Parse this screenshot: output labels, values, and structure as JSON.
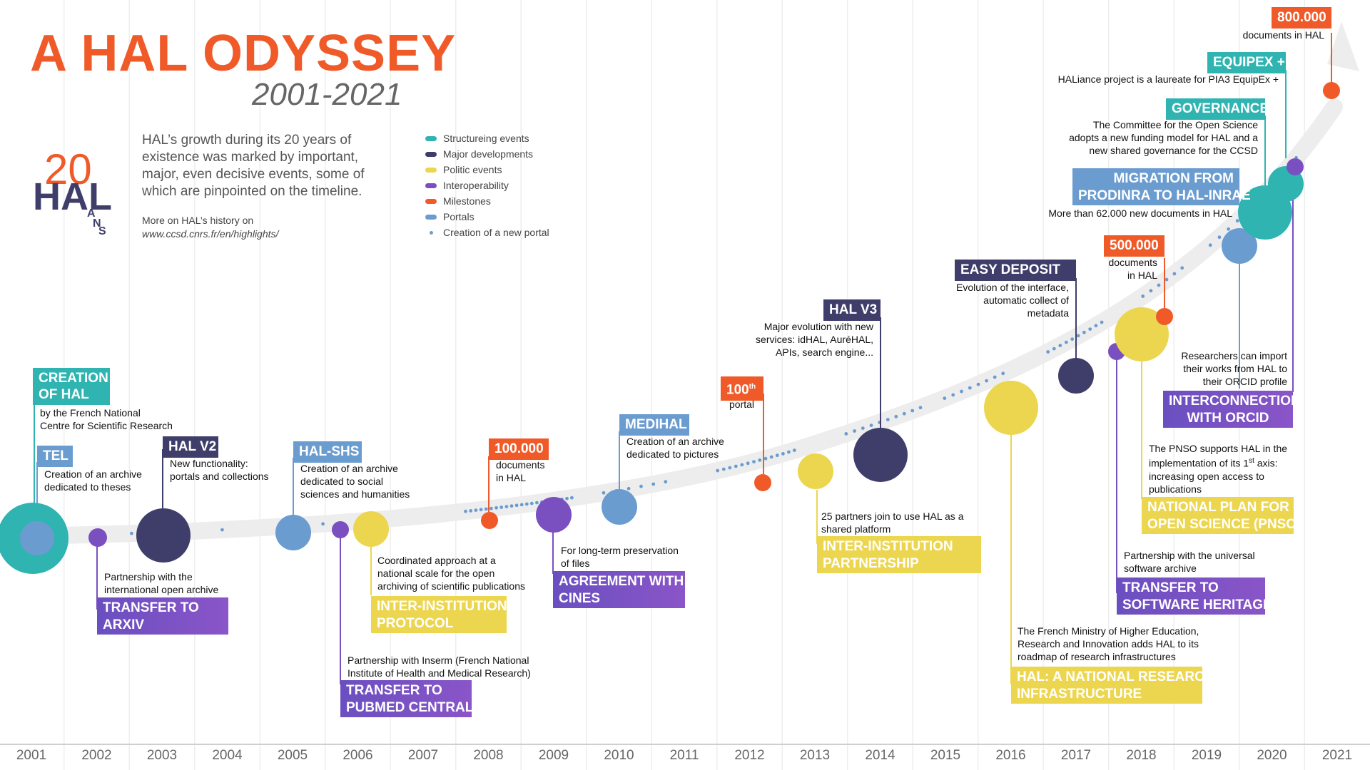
{
  "header": {
    "title": "A HAL ODYSSEY",
    "subtitle": "2001-2021",
    "intro": "HAL’s growth during its 20 years of existence was marked by important, major, even decisive events, some of which are pinpointed on the timeline.",
    "more_line1": "More on HAL’s history on",
    "more_url": "www.ccsd.cnrs.fr/en/highlights/"
  },
  "logo": {
    "digit": "20",
    "word": "HAL",
    "letters": [
      "A",
      "N",
      "S"
    ],
    "icon": "hal-20-ans-logo"
  },
  "colors": {
    "structuring": "#2fb4b1",
    "major": "#3f3e6b",
    "politic": "#ecd64f",
    "interop": "#7a4fc0",
    "milestone": "#ef5a28",
    "portal": "#6b9cd0",
    "orange_title": "#ef5a28"
  },
  "legend": [
    {
      "label": "Structureing events",
      "color": "#2fb4b1"
    },
    {
      "label": "Major developments",
      "color": "#3f3e6b"
    },
    {
      "label": "Politic events",
      "color": "#ecd64f"
    },
    {
      "label": "Interoperability",
      "color": "#7a4fc0"
    },
    {
      "label": "Milestones",
      "color": "#ef5a28"
    },
    {
      "label": "Portals",
      "color": "#6b9cd0"
    },
    {
      "label": "Creation of a new portal",
      "color": "#6b9cd0",
      "dot": true
    }
  ],
  "years": [
    "2001",
    "2002",
    "2003",
    "2004",
    "2005",
    "2006",
    "2007",
    "2008",
    "2009",
    "2010",
    "2011",
    "2012",
    "2013",
    "2014",
    "2015",
    "2016",
    "2017",
    "2018",
    "2019",
    "2020",
    "2021"
  ],
  "events": {
    "creation": {
      "title": "CREATION OF HAL",
      "desc": [
        "by the French National",
        "Centre for Scientific Research"
      ]
    },
    "tel": {
      "title": "TEL",
      "desc": [
        "Creation of an archive",
        "dedicated to theses"
      ]
    },
    "arxiv": {
      "title": [
        "TRANSFER TO",
        "ARXIV"
      ],
      "desc": [
        "Partnership with the",
        "international open archive"
      ]
    },
    "halv2": {
      "title": "HAL V2",
      "desc": [
        "New functionality:",
        "portals and collections"
      ]
    },
    "halshs": {
      "title": "HAL-SHS",
      "desc": [
        "Creation of an archive",
        "dedicated to social",
        "sciences and humanities"
      ]
    },
    "pubmed": {
      "title": [
        "TRANSFER TO",
        "PUBMED CENTRAL"
      ],
      "desc": [
        "Partnership with Inserm (French National",
        "Institute of Health and Medical Research)"
      ]
    },
    "protocol": {
      "title": [
        "INTER-INSTITUTION",
        "PROTOCOL"
      ],
      "desc": [
        "Coordinated approach at a",
        "national scale for the open",
        "archiving of scientific publications"
      ]
    },
    "m100k": {
      "title": "100.000",
      "desc": [
        "documents",
        "in HAL"
      ]
    },
    "cines": {
      "title": [
        "AGREEMENT WITH",
        "CINES"
      ],
      "desc": [
        "For long-term preservation",
        "of files"
      ]
    },
    "medihal": {
      "title": "MEDIHAL",
      "desc": [
        "Creation of an archive",
        "dedicated to pictures"
      ]
    },
    "portal100": {
      "title_num": "100",
      "title_sup": "th",
      "desc": "portal"
    },
    "partnership": {
      "title": [
        "INTER-INSTITUTION",
        "PARTNERSHIP"
      ],
      "desc": [
        "25 partners join to use HAL as a",
        "shared platform"
      ]
    },
    "halv3": {
      "title": "HAL V3",
      "desc": [
        "Major evolution with new",
        "services: idHAL, AuréHAL,",
        "APIs, search engine..."
      ]
    },
    "easy": {
      "title": "EASY DEPOSIT",
      "desc": [
        "Evolution  of the interface,",
        "automatic collect of",
        "metadata"
      ]
    },
    "infra": {
      "title": [
        "HAL: A NATIONAL RESEARCH",
        "INFRASTRUCTURE"
      ],
      "desc": [
        "The French Ministry of Higher Education,",
        "Research and Innovation adds HAL to its",
        "roadmap of research infrastructures"
      ]
    },
    "swh": {
      "title": [
        "TRANSFER TO",
        "SOFTWARE HERITAGE"
      ],
      "desc": [
        "Partnership with the  universal",
        "software archive"
      ]
    },
    "pnso": {
      "title": [
        "NATIONAL PLAN FOR",
        "OPEN SCIENCE (PNSO)"
      ],
      "desc_lines": [
        "The PNSO supports HAL in the",
        "implementation of its 1",
        "st",
        " axis:",
        "increasing open access to",
        "publications"
      ]
    },
    "m500k": {
      "title": "500.000",
      "desc": [
        "documents",
        "in HAL"
      ]
    },
    "orcid": {
      "title": [
        "INTERCONNECTION",
        "WITH ORCID"
      ],
      "desc": [
        "Researchers can import",
        "their works from HAL to",
        "their ORCID profile"
      ]
    },
    "migration": {
      "title": [
        "MIGRATION FROM",
        "PRODINRA TO HAL-INRAE"
      ],
      "desc": [
        "More than 62.000 new documents in HAL"
      ]
    },
    "governance": {
      "title": "GOVERNANCE",
      "desc": [
        "The Committee for the Open Science",
        "adopts a new funding model for HAL and a",
        "new shared governance for the CCSD"
      ]
    },
    "equipex": {
      "title": "EQUIPEX +",
      "desc": [
        "HALiance project is a laureate for PIA3 EquipEx +"
      ]
    },
    "m800k": {
      "title": "800.000",
      "desc": [
        "documents in HAL"
      ]
    }
  }
}
